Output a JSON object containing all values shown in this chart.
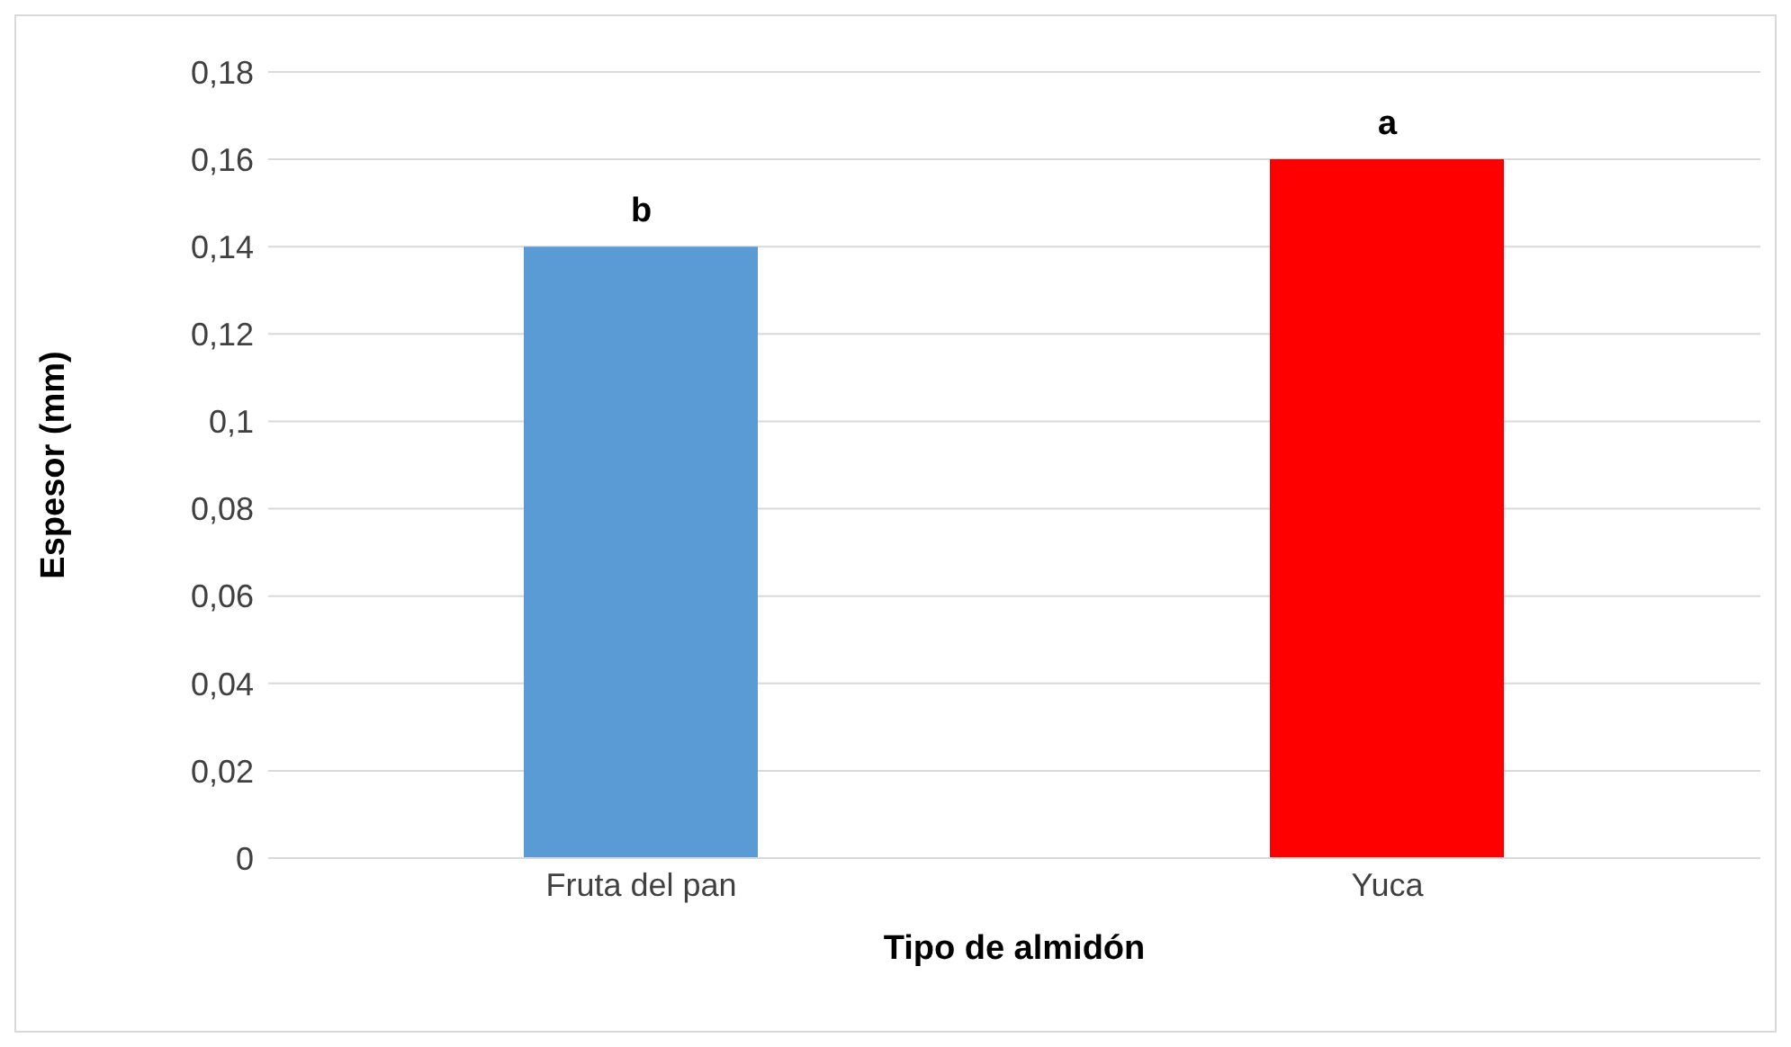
{
  "chart_data": {
    "type": "bar",
    "xlabel": "Tipo de almidón",
    "ylabel": "Espesor (mm)",
    "categories": [
      "Fruta del pan",
      "Yuca"
    ],
    "values": [
      0.14,
      0.16
    ],
    "colors": [
      "#5b9bd5",
      "#ff0000"
    ],
    "ylim": [
      0,
      0.18
    ],
    "yticks": [
      0,
      {
        "value": 0.02,
        "label": "0,02"
      },
      {
        "value": 0.04,
        "label": "0,04"
      },
      {
        "value": 0.06,
        "label": "0,06"
      },
      {
        "value": 0.08,
        "label": "0,08"
      },
      {
        "value": 0.1,
        "label": "0,1"
      },
      {
        "value": 0.12,
        "label": "0,12"
      },
      {
        "value": 0.14,
        "label": "0,14"
      },
      {
        "value": 0.16,
        "label": "0,16"
      },
      {
        "value": 0.18,
        "label": "0,18"
      }
    ],
    "grid": "y",
    "annotations": [
      {
        "text": "b",
        "x": "Fruta del pan",
        "y": 0.14
      },
      {
        "text": "a",
        "x": "Yuca",
        "y": 0.16
      }
    ]
  }
}
